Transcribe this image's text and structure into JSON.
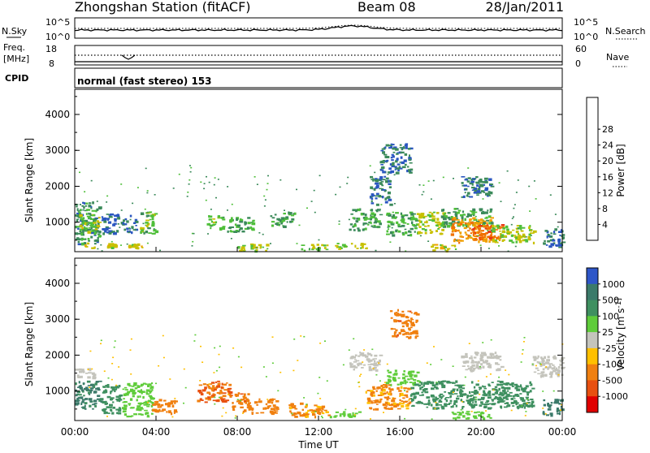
{
  "header": {
    "station": "Zhongshan Station (fitACF)",
    "beam": "Beam 08",
    "date": "28/Jan/2011"
  },
  "noise_panel": {
    "left_label": "N.Sky",
    "right_label": "N.Search",
    "left_ticks": [
      "10^5",
      "10^0"
    ],
    "right_ticks": [
      "10^5",
      "10^0"
    ]
  },
  "freq_panel": {
    "left_label_1": "Freq.",
    "left_label_2": "[MHz]",
    "left_ticks": [
      "18",
      "8"
    ],
    "right_label": "Nave",
    "right_ticks": [
      "60",
      "0"
    ]
  },
  "cpid_panel": {
    "label": "CPID",
    "mode": "normal (fast stereo) 153"
  },
  "axes": {
    "ylabel": "Slant Range [km]",
    "xlabel": "Time UT",
    "yticks": [
      "1000",
      "2000",
      "3000",
      "4000"
    ],
    "xticks": [
      "00:00",
      "04:00",
      "08:00",
      "12:00",
      "16:00",
      "20:00",
      "00:00"
    ]
  },
  "colorbars": {
    "power": {
      "title": "Power [dB]",
      "labels": [
        "4",
        "8",
        "12",
        "16",
        "20",
        "24",
        "28"
      ],
      "colors": [
        "#1010ee",
        "#2a56c0",
        "#3b8a5a",
        "#4fbf3a",
        "#c8c000",
        "#f0a000",
        "#f07000",
        "#e83818",
        "#e00000"
      ]
    },
    "velocity": {
      "title": "Velocity [m s^-1]",
      "labels": [
        "1000",
        "500",
        "100",
        "25",
        "-25",
        "-100",
        "-500",
        "-1000"
      ],
      "colors": [
        "#2e56c8",
        "#3b7a6a",
        "#3f9060",
        "#5fcc3a",
        "#c4c4bc",
        "#ffc000",
        "#f08010",
        "#e85010",
        "#e00000"
      ]
    }
  },
  "chart_data": [
    {
      "type": "heatmap",
      "title": "Power",
      "x_range_hours": [
        0,
        24
      ],
      "y_range_km": [
        180,
        4700
      ],
      "x_unit": "UT hours",
      "y_unit": "km",
      "value_unit": "dB",
      "patches": [
        {
          "t0": 0.0,
          "t1": 1.2,
          "r0": 400,
          "r1": 1600,
          "v": 10
        },
        {
          "t0": 0.2,
          "t1": 1.2,
          "r0": 700,
          "r1": 1250,
          "v": 15
        },
        {
          "t0": 0.3,
          "t1": 2.0,
          "r0": 300,
          "r1": 450,
          "v": 18
        },
        {
          "t0": 1.3,
          "t1": 3.0,
          "r0": 700,
          "r1": 1250,
          "v": 7
        },
        {
          "t0": 2.6,
          "t1": 3.3,
          "r0": 280,
          "r1": 420,
          "v": 18
        },
        {
          "t0": 3.2,
          "t1": 4.0,
          "r0": 700,
          "r1": 1300,
          "v": 14
        },
        {
          "t0": 6.5,
          "t1": 7.3,
          "r0": 800,
          "r1": 1200,
          "v": 15
        },
        {
          "t0": 7.5,
          "t1": 8.8,
          "r0": 750,
          "r1": 1150,
          "v": 12
        },
        {
          "t0": 8.0,
          "t1": 9.5,
          "r0": 230,
          "r1": 420,
          "v": 16
        },
        {
          "t0": 9.6,
          "t1": 10.8,
          "r0": 900,
          "r1": 1300,
          "v": 12
        },
        {
          "t0": 11.0,
          "t1": 12.5,
          "r0": 230,
          "r1": 400,
          "v": 15
        },
        {
          "t0": 12.8,
          "t1": 14.5,
          "r0": 280,
          "r1": 430,
          "v": 17
        },
        {
          "t0": 13.5,
          "t1": 15.0,
          "r0": 800,
          "r1": 1400,
          "v": 11
        },
        {
          "t0": 14.5,
          "t1": 15.5,
          "r0": 1500,
          "r1": 2300,
          "v": 9
        },
        {
          "t0": 15.0,
          "t1": 16.5,
          "r0": 2400,
          "r1": 3200,
          "v": 8
        },
        {
          "t0": 15.3,
          "t1": 16.8,
          "r0": 650,
          "r1": 1300,
          "v": 12
        },
        {
          "t0": 16.8,
          "t1": 18.2,
          "r0": 700,
          "r1": 1300,
          "v": 17
        },
        {
          "t0": 17.5,
          "t1": 18.8,
          "r0": 220,
          "r1": 400,
          "v": 18
        },
        {
          "t0": 18.0,
          "t1": 20.5,
          "r0": 900,
          "r1": 1400,
          "v": 12
        },
        {
          "t0": 18.5,
          "t1": 20.5,
          "r0": 450,
          "r1": 1150,
          "v": 23
        },
        {
          "t0": 19.3,
          "t1": 21.0,
          "r0": 520,
          "r1": 950,
          "v": 27
        },
        {
          "t0": 20.5,
          "t1": 22.6,
          "r0": 450,
          "r1": 950,
          "v": 17
        },
        {
          "t0": 19.0,
          "t1": 20.5,
          "r0": 1700,
          "r1": 2300,
          "v": 9
        },
        {
          "t0": 23.0,
          "t1": 24.0,
          "r0": 300,
          "r1": 850,
          "v": 8
        }
      ]
    },
    {
      "type": "heatmap",
      "title": "Velocity",
      "x_range_hours": [
        0,
        24
      ],
      "y_range_km": [
        180,
        4700
      ],
      "x_unit": "UT hours",
      "y_unit": "km",
      "value_unit": "m/s",
      "patches": [
        {
          "t0": 0.0,
          "t1": 1.0,
          "r0": 1400,
          "r1": 1650,
          "v": 0
        },
        {
          "t0": 0.0,
          "t1": 1.3,
          "r0": 500,
          "r1": 1300,
          "v": 600
        },
        {
          "t0": 1.3,
          "t1": 2.3,
          "r0": 400,
          "r1": 1200,
          "v": 300
        },
        {
          "t0": 2.3,
          "t1": 3.8,
          "r0": 300,
          "r1": 1250,
          "v": 70
        },
        {
          "t0": 3.8,
          "t1": 5.0,
          "r0": 400,
          "r1": 800,
          "v": -150
        },
        {
          "t0": 6.0,
          "t1": 7.6,
          "r0": 700,
          "r1": 1300,
          "v": -500
        },
        {
          "t0": 7.6,
          "t1": 8.6,
          "r0": 450,
          "r1": 1000,
          "v": -400
        },
        {
          "t0": 8.6,
          "t1": 10.0,
          "r0": 400,
          "r1": 800,
          "v": -150
        },
        {
          "t0": 10.5,
          "t1": 12.5,
          "r0": 300,
          "r1": 700,
          "v": -120
        },
        {
          "t0": 12.5,
          "t1": 14.0,
          "r0": 300,
          "r1": 450,
          "v": 60
        },
        {
          "t0": 13.5,
          "t1": 15.0,
          "r0": 1600,
          "r1": 2100,
          "v": 0
        },
        {
          "t0": 14.3,
          "t1": 16.5,
          "r0": 500,
          "r1": 1200,
          "v": -120
        },
        {
          "t0": 15.5,
          "t1": 16.8,
          "r0": 2500,
          "r1": 3300,
          "v": -400
        },
        {
          "t0": 15.3,
          "t1": 17.0,
          "r0": 1200,
          "r1": 1600,
          "v": 60
        },
        {
          "t0": 16.5,
          "t1": 22.5,
          "r0": 550,
          "r1": 1300,
          "v": 200
        },
        {
          "t0": 18.5,
          "t1": 20.5,
          "r0": 250,
          "r1": 450,
          "v": 60
        },
        {
          "t0": 19.0,
          "t1": 21.0,
          "r0": 1600,
          "r1": 2100,
          "v": 0
        },
        {
          "t0": 22.5,
          "t1": 24.0,
          "r0": 1400,
          "r1": 2000,
          "v": 0
        },
        {
          "t0": 23.0,
          "t1": 24.0,
          "r0": 350,
          "r1": 800,
          "v": 700
        }
      ]
    }
  ]
}
